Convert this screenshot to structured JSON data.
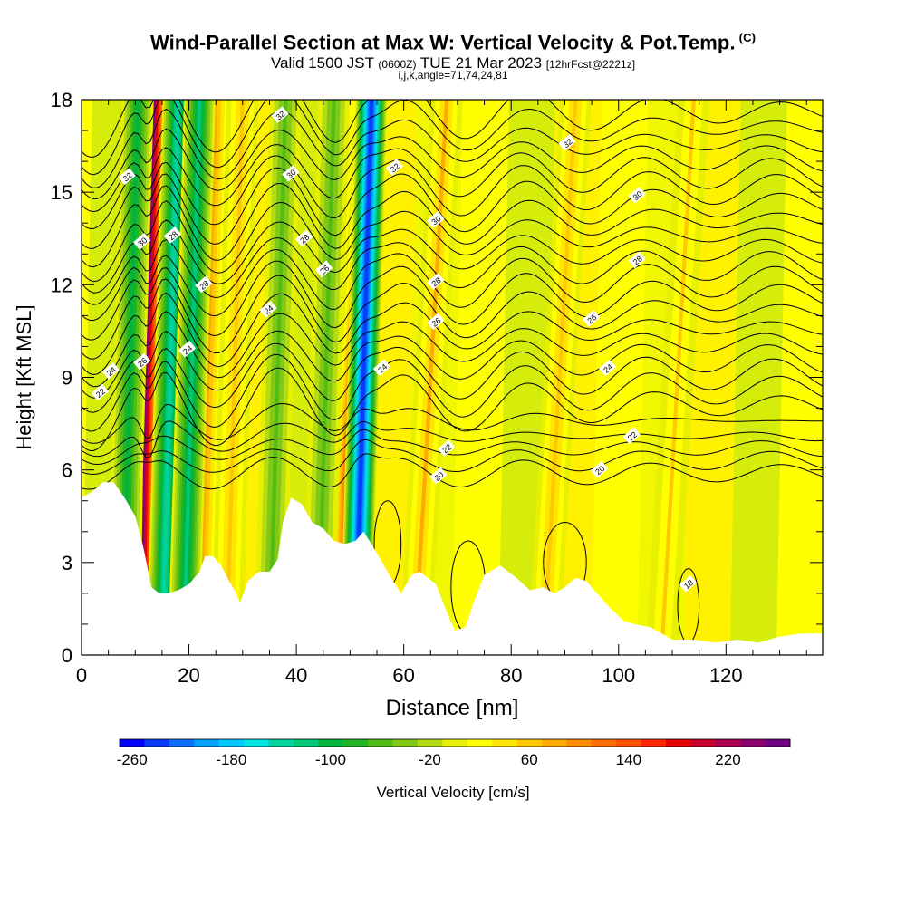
{
  "header": {
    "title": "Wind-Parallel Section at Max W: Vertical Velocity & Pot.Temp.",
    "copyright": "(C)",
    "valid_prefix": "Valid 1500 JST",
    "valid_utc": "(0600Z)",
    "valid_date": "TUE 21 Mar 2023",
    "forecast_info": "[12hrFcst@2221z]",
    "params": "i,j,k,angle=71,74,24,81"
  },
  "colorbar": {
    "label": "Vertical Velocity [cm/s]",
    "tick_labels": [
      "-260",
      "-180",
      "-100",
      "-20",
      "60",
      "140",
      "220"
    ],
    "tick_values": [
      -260,
      -180,
      -100,
      -20,
      60,
      140,
      220
    ],
    "min": -270,
    "max": 270,
    "step": 20,
    "colors": [
      "#0000ff",
      "#0a3cff",
      "#0a6eff",
      "#00a0ff",
      "#00c8ff",
      "#00e6e6",
      "#00d2a0",
      "#00c878",
      "#00b440",
      "#22b422",
      "#50be14",
      "#82c814",
      "#b4dc14",
      "#e6f000",
      "#ffff00",
      "#ffe600",
      "#ffc800",
      "#ffaa00",
      "#ff8c00",
      "#ff6e00",
      "#ff5000",
      "#ff2800",
      "#e60000",
      "#c8002d",
      "#aa0050",
      "#8c006e",
      "#6e0082"
    ]
  },
  "chart_data": {
    "type": "heatmap",
    "title": "Wind-Parallel Section at Max W: Vertical Velocity & Pot.Temp.",
    "xlabel": "Distance [nm]",
    "ylabel": "Height [Kft MSL]",
    "xlim": [
      0,
      138
    ],
    "ylim": [
      0,
      18
    ],
    "x_ticks": [
      0,
      20,
      40,
      60,
      80,
      100,
      120
    ],
    "y_ticks": [
      0,
      3,
      6,
      9,
      12,
      15,
      18
    ],
    "x_tick_labels": [
      "0",
      "20",
      "40",
      "60",
      "80",
      "100",
      "120"
    ],
    "y_tick_labels": [
      "0",
      "3",
      "6",
      "9",
      "12",
      "15",
      "18"
    ],
    "field": "Vertical Velocity [cm/s]",
    "contour_field": "Potential Temperature",
    "contour_levels": [
      18,
      20,
      22,
      24,
      26,
      28,
      30,
      32
    ],
    "contour_labels": [
      {
        "text": "32",
        "x": 8.5,
        "y": 15.5
      },
      {
        "text": "30",
        "x": 11.3,
        "y": 13.4
      },
      {
        "text": "28",
        "x": 17.0,
        "y": 13.6
      },
      {
        "text": "26",
        "x": 11.3,
        "y": 9.5
      },
      {
        "text": "28",
        "x": 22.8,
        "y": 12.0
      },
      {
        "text": "24",
        "x": 19.7,
        "y": 9.9
      },
      {
        "text": "24",
        "x": 5.5,
        "y": 9.2
      },
      {
        "text": "22",
        "x": 3.5,
        "y": 8.5
      },
      {
        "text": "32",
        "x": 37.0,
        "y": 17.5
      },
      {
        "text": "30",
        "x": 39.0,
        "y": 15.6
      },
      {
        "text": "28",
        "x": 41.5,
        "y": 13.5
      },
      {
        "text": "26",
        "x": 45.2,
        "y": 12.5
      },
      {
        "text": "24",
        "x": 34.8,
        "y": 11.2
      },
      {
        "text": "32",
        "x": 58.3,
        "y": 15.8
      },
      {
        "text": "30",
        "x": 66.0,
        "y": 14.1
      },
      {
        "text": "28",
        "x": 66.0,
        "y": 12.1
      },
      {
        "text": "26",
        "x": 66.0,
        "y": 10.8
      },
      {
        "text": "24",
        "x": 56.0,
        "y": 9.3
      },
      {
        "text": "22",
        "x": 68.0,
        "y": 6.7
      },
      {
        "text": "20",
        "x": 66.5,
        "y": 5.8
      },
      {
        "text": "32",
        "x": 90.5,
        "y": 16.6
      },
      {
        "text": "30",
        "x": 103.5,
        "y": 14.9
      },
      {
        "text": "28",
        "x": 103.5,
        "y": 12.8
      },
      {
        "text": "26",
        "x": 95.0,
        "y": 10.9
      },
      {
        "text": "24",
        "x": 98.0,
        "y": 9.3
      },
      {
        "text": "22",
        "x": 102.5,
        "y": 7.1
      },
      {
        "text": "20",
        "x": 96.5,
        "y": 6.0
      },
      {
        "text": "18",
        "x": 113.0,
        "y": 2.3
      }
    ],
    "updraft_axes": [
      {
        "x": [
          11,
          11.5,
          12.5,
          13.5
        ],
        "w": 230
      },
      {
        "x": [
          49,
          50,
          52,
          54
        ],
        "w": 160
      },
      {
        "x": [
          22,
          23,
          24,
          25
        ],
        "w": 80
      },
      {
        "x": [
          27,
          28,
          29,
          30
        ],
        "w": 60
      },
      {
        "x": [
          62,
          64,
          66,
          68
        ],
        "w": 70
      },
      {
        "x": [
          86,
          88,
          90,
          92
        ],
        "w": 60
      },
      {
        "x": [
          108,
          110,
          112,
          114
        ],
        "w": 50
      }
    ],
    "downdraft_axes": [
      {
        "x": [
          51,
          52,
          53,
          54
        ],
        "w": -250
      },
      {
        "x": [
          15,
          16,
          17,
          18
        ],
        "w": -150
      },
      {
        "x": [
          8,
          8.5,
          9.5,
          10.5
        ],
        "w": -110
      },
      {
        "x": [
          19,
          20,
          21,
          22
        ],
        "w": -120
      },
      {
        "x": [
          35,
          36,
          37,
          38
        ],
        "w": -60
      },
      {
        "x": [
          44,
          45,
          46,
          47
        ],
        "w": -60
      }
    ],
    "terrain_kft": [
      [
        0,
        5.1
      ],
      [
        2,
        5.3
      ],
      [
        4,
        5.6
      ],
      [
        6,
        5.6
      ],
      [
        8,
        5.1
      ],
      [
        10,
        4.5
      ],
      [
        11.5,
        3.5
      ],
      [
        13,
        2.2
      ],
      [
        14.5,
        2.0
      ],
      [
        16,
        2.0
      ],
      [
        18,
        2.1
      ],
      [
        20,
        2.3
      ],
      [
        22,
        2.7
      ],
      [
        23,
        3.2
      ],
      [
        24.5,
        3.2
      ],
      [
        26,
        2.9
      ],
      [
        27.5,
        2.4
      ],
      [
        28.5,
        2.1
      ],
      [
        29.5,
        1.7
      ],
      [
        31,
        2.4
      ],
      [
        33,
        2.7
      ],
      [
        35,
        2.7
      ],
      [
        36.5,
        3.1
      ],
      [
        37.5,
        4.3
      ],
      [
        39,
        5.1
      ],
      [
        41,
        4.9
      ],
      [
        43,
        4.3
      ],
      [
        45,
        4.1
      ],
      [
        47,
        3.7
      ],
      [
        49,
        3.6
      ],
      [
        51,
        3.7
      ],
      [
        52.5,
        4.0
      ],
      [
        54,
        3.6
      ],
      [
        56,
        3.0
      ],
      [
        58,
        2.4
      ],
      [
        59.5,
        2.0
      ],
      [
        61.5,
        2.6
      ],
      [
        63,
        2.7
      ],
      [
        66,
        2.3
      ],
      [
        68,
        1.4
      ],
      [
        69.5,
        0.8
      ],
      [
        71.5,
        0.9
      ],
      [
        73,
        1.7
      ],
      [
        75,
        2.6
      ],
      [
        78,
        2.9
      ],
      [
        81,
        2.5
      ],
      [
        83.5,
        2.1
      ],
      [
        86,
        2.2
      ],
      [
        88,
        2.0
      ],
      [
        90,
        2.2
      ],
      [
        92,
        2.5
      ],
      [
        94,
        2.4
      ],
      [
        96,
        2.0
      ],
      [
        98,
        1.6
      ],
      [
        101,
        1.1
      ],
      [
        103,
        1.0
      ],
      [
        106,
        0.9
      ],
      [
        110,
        0.5
      ],
      [
        114,
        0.5
      ],
      [
        118,
        0.4
      ],
      [
        122,
        0.5
      ],
      [
        126,
        0.4
      ],
      [
        130,
        0.6
      ],
      [
        134,
        0.7
      ],
      [
        138,
        0.7
      ]
    ]
  }
}
